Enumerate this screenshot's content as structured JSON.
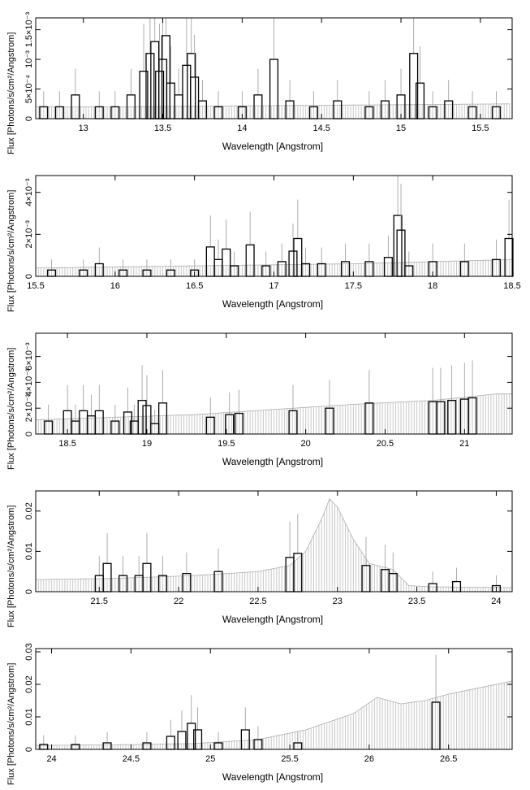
{
  "chart_data": [
    {
      "type": "line",
      "xlabel": "Wavelength [Angstrom]",
      "ylabel": "Flux [Photons/s/cm²/Angstrom]",
      "xlim": [
        12.7,
        15.7
      ],
      "ylim": [
        0,
        0.0017
      ],
      "xticks": [
        13,
        13.5,
        14,
        14.5,
        15,
        15.5
      ],
      "xtick_labels": [
        "13",
        "13.5",
        "14",
        "14.5",
        "15",
        "15.5"
      ],
      "yticks": [
        0,
        0.0005,
        0.001,
        0.0015
      ],
      "ytick_labels": [
        "0",
        "5×10⁻⁴",
        "10⁻³",
        "1.5×10⁻³"
      ],
      "model": {
        "x": [
          12.7,
          13.2,
          13.7,
          14.2,
          14.7,
          15.2,
          15.7
        ],
        "y": [
          0.0002,
          0.0002,
          0.00021,
          0.00022,
          0.00023,
          0.00024,
          0.00025
        ]
      },
      "data": {
        "x": [
          12.75,
          12.85,
          12.95,
          13.1,
          13.2,
          13.3,
          13.38,
          13.42,
          13.45,
          13.48,
          13.5,
          13.52,
          13.55,
          13.6,
          13.65,
          13.68,
          13.7,
          13.75,
          13.85,
          14.0,
          14.1,
          14.2,
          14.3,
          14.45,
          14.6,
          14.8,
          14.9,
          15.0,
          15.08,
          15.12,
          15.2,
          15.3,
          15.45,
          15.6
        ],
        "y": [
          0.0002,
          0.0002,
          0.0004,
          0.0002,
          0.0002,
          0.0004,
          0.0008,
          0.0011,
          0.0013,
          0.0008,
          0.001,
          0.0014,
          0.0006,
          0.0004,
          0.0009,
          0.0011,
          0.0007,
          0.0003,
          0.0002,
          0.0002,
          0.0004,
          0.001,
          0.0003,
          0.0002,
          0.0003,
          0.0002,
          0.0003,
          0.0004,
          0.0011,
          0.0006,
          0.0002,
          0.0003,
          0.0002,
          0.0002
        ]
      }
    },
    {
      "type": "line",
      "xlabel": "Wavelength [Angstrom]",
      "ylabel": "Flux [Photons/s/cm²/Angstrom]",
      "xlim": [
        15.5,
        18.5
      ],
      "ylim": [
        0,
        0.0048
      ],
      "xticks": [
        15.5,
        16,
        16.5,
        17,
        17.5,
        18,
        18.5
      ],
      "xtick_labels": [
        "15.5",
        "16",
        "16.5",
        "17",
        "17.5",
        "18",
        "18.5"
      ],
      "yticks": [
        0,
        0.002,
        0.004
      ],
      "ytick_labels": [
        "0",
        "2×10⁻³",
        "4×10⁻³"
      ],
      "model": {
        "x": [
          15.5,
          16.0,
          16.5,
          17.0,
          17.5,
          18.0,
          18.5
        ],
        "y": [
          0.0004,
          0.00045,
          0.0005,
          0.00055,
          0.0006,
          0.0007,
          0.0008
        ]
      },
      "data": {
        "x": [
          15.6,
          15.8,
          15.9,
          16.05,
          16.2,
          16.35,
          16.5,
          16.6,
          16.65,
          16.7,
          16.75,
          16.85,
          16.95,
          17.05,
          17.12,
          17.15,
          17.2,
          17.3,
          17.45,
          17.6,
          17.72,
          17.78,
          17.8,
          17.85,
          18.0,
          18.2,
          18.4,
          18.48
        ],
        "y": [
          0.0003,
          0.0003,
          0.0006,
          0.0003,
          0.0003,
          0.0003,
          0.0003,
          0.0014,
          0.0008,
          0.0013,
          0.0005,
          0.0015,
          0.0005,
          0.0007,
          0.0012,
          0.0018,
          0.0006,
          0.0006,
          0.0007,
          0.0007,
          0.0009,
          0.0029,
          0.0022,
          0.0005,
          0.0007,
          0.0007,
          0.0008,
          0.0018
        ]
      }
    },
    {
      "type": "line",
      "xlabel": "Wavelength [Angstrom]",
      "ylabel": "Flux [Photons/s/cm²/Angstrom]",
      "xlim": [
        18.3,
        21.3
      ],
      "ylim": [
        0,
        0.0078
      ],
      "xticks": [
        18.5,
        19,
        19.5,
        20,
        20.5,
        21
      ],
      "xtick_labels": [
        "18.5",
        "19",
        "19.5",
        "20",
        "20.5",
        "21"
      ],
      "yticks": [
        0,
        0.002,
        0.004,
        0.006
      ],
      "ytick_labels": [
        "0",
        "2×10⁻³",
        "4×10⁻³",
        "6×10⁻³"
      ],
      "model": {
        "x": [
          18.3,
          18.8,
          19.3,
          19.8,
          20.3,
          20.8,
          21.2,
          21.3
        ],
        "y": [
          0.0011,
          0.0013,
          0.0015,
          0.0019,
          0.0023,
          0.0026,
          0.0031,
          0.0031
        ]
      },
      "data": {
        "x": [
          18.38,
          18.5,
          18.55,
          18.6,
          18.65,
          18.7,
          18.8,
          18.88,
          18.92,
          18.97,
          19.0,
          19.05,
          19.1,
          19.4,
          19.52,
          19.58,
          19.92,
          20.15,
          20.4,
          20.8,
          20.85,
          20.92,
          21.0,
          21.05
        ],
        "y": [
          0.001,
          0.0018,
          0.001,
          0.0018,
          0.0014,
          0.0018,
          0.001,
          0.0017,
          0.001,
          0.0026,
          0.0022,
          0.0008,
          0.0024,
          0.0013,
          0.0015,
          0.0016,
          0.0018,
          0.002,
          0.0024,
          0.0025,
          0.0025,
          0.0026,
          0.0027,
          0.0028
        ]
      }
    },
    {
      "type": "line",
      "xlabel": "Wavelength [Angstrom]",
      "ylabel": "Flux [Photons/s/cm²/Angstrom]",
      "xlim": [
        21.1,
        24.1
      ],
      "ylim": [
        0,
        0.025
      ],
      "xticks": [
        21.5,
        22,
        22.5,
        23,
        23.5,
        24
      ],
      "xtick_labels": [
        "21.5",
        "22",
        "22.5",
        "23",
        "23.5",
        "24"
      ],
      "yticks": [
        0,
        0.01,
        0.02
      ],
      "ytick_labels": [
        "0",
        "0.01",
        "0.02"
      ],
      "model": {
        "x": [
          21.1,
          21.6,
          22.1,
          22.5,
          22.7,
          22.8,
          22.9,
          22.95,
          23.0,
          23.1,
          23.2,
          23.35,
          23.45,
          23.6,
          24.1
        ],
        "y": [
          0.003,
          0.0033,
          0.004,
          0.005,
          0.0065,
          0.01,
          0.018,
          0.023,
          0.021,
          0.013,
          0.007,
          0.0055,
          0.0015,
          0.0012,
          0.001
        ]
      },
      "data": {
        "x": [
          21.5,
          21.55,
          21.65,
          21.75,
          21.8,
          21.9,
          22.05,
          22.25,
          22.7,
          22.75,
          23.18,
          23.3,
          23.35,
          23.6,
          23.75,
          24.0
        ],
        "y": [
          0.004,
          0.007,
          0.004,
          0.004,
          0.007,
          0.004,
          0.0045,
          0.005,
          0.0085,
          0.0095,
          0.0065,
          0.0055,
          0.0045,
          0.002,
          0.0025,
          0.0015
        ]
      }
    },
    {
      "type": "line",
      "xlabel": "Wavelength [Angstrom]",
      "ylabel": "Flux [Photons/s/cm²/Angstrom]",
      "xlim": [
        23.9,
        26.9
      ],
      "ylim": [
        0,
        0.031
      ],
      "xticks": [
        24,
        24.5,
        25,
        25.5,
        26,
        26.5
      ],
      "xtick_labels": [
        "24",
        "24.5",
        "25",
        "25.5",
        "26",
        "26.5"
      ],
      "yticks": [
        0,
        0.01,
        0.02,
        0.03
      ],
      "ytick_labels": [
        "0",
        "0.01",
        "0.02",
        "0.03"
      ],
      "model": {
        "x": [
          23.9,
          24.4,
          24.9,
          25.3,
          25.6,
          25.9,
          26.05,
          26.2,
          26.35,
          26.5,
          26.9
        ],
        "y": [
          0.0012,
          0.0014,
          0.0018,
          0.003,
          0.006,
          0.011,
          0.016,
          0.014,
          0.015,
          0.017,
          0.021
        ]
      },
      "data": {
        "x": [
          23.95,
          24.15,
          24.35,
          24.6,
          24.75,
          24.82,
          24.88,
          24.92,
          25.05,
          25.22,
          25.3,
          25.55,
          26.42
        ],
        "y": [
          0.0015,
          0.0015,
          0.002,
          0.002,
          0.004,
          0.0055,
          0.008,
          0.006,
          0.002,
          0.006,
          0.003,
          0.002,
          0.0145
        ]
      }
    }
  ]
}
